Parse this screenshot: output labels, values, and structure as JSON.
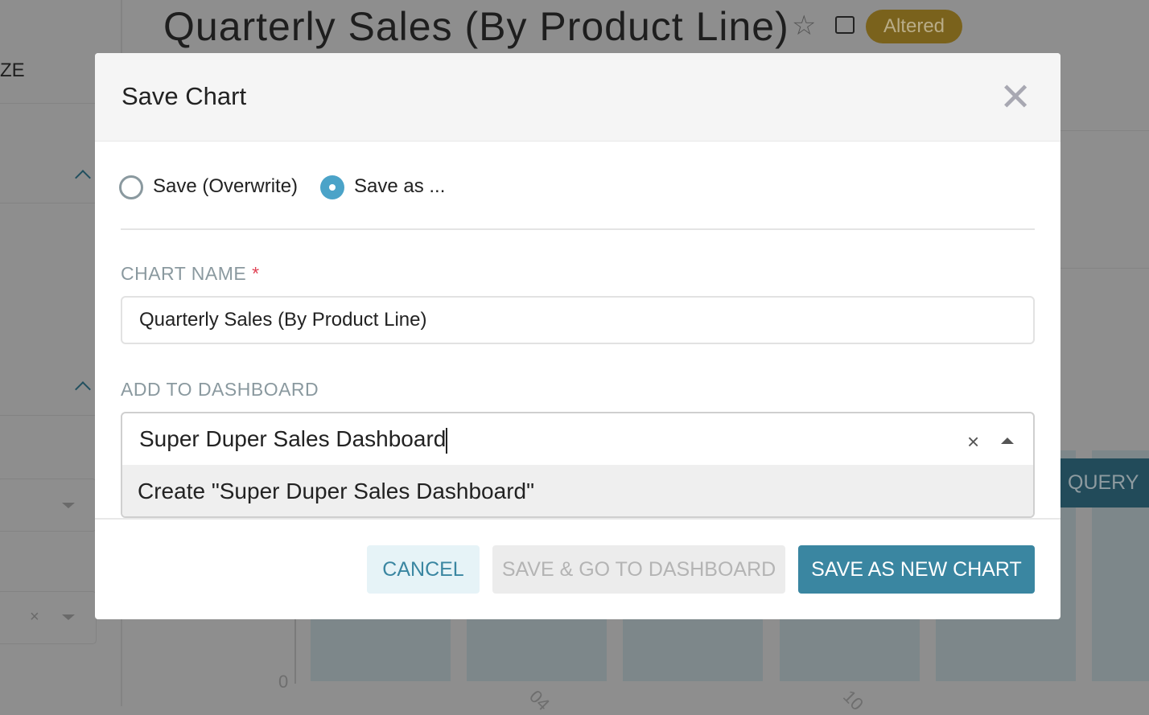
{
  "background": {
    "page_title": "Quarterly Sales (By Product Line)",
    "status_badge": "Altered",
    "sidebar_partial_label": "ZE",
    "run_query_partial": "QUERY",
    "y_axis_zero": "0",
    "x_ticks_partial": [
      "04",
      "10"
    ]
  },
  "modal": {
    "title": "Save Chart",
    "save_options": [
      {
        "label": "Save (Overwrite)",
        "selected": false
      },
      {
        "label": "Save as ...",
        "selected": true
      }
    ],
    "chart_name_label": "CHART NAME",
    "required_marker": "*",
    "chart_name_value": "Quarterly Sales (By Product Line)",
    "dashboard_label": "ADD TO DASHBOARD",
    "dashboard_value": "Super Duper Sales Dashboard",
    "dashboard_option": "Create \"Super Duper Sales Dashboard\"",
    "buttons": {
      "cancel": "CANCEL",
      "save_go": "SAVE & GO TO DASHBOARD",
      "save_new": "SAVE AS NEW CHART"
    }
  },
  "colors": {
    "primary": "#3a86a1",
    "badge": "#7a621c",
    "radio": "#4ba3c8",
    "required": "#e04355"
  }
}
